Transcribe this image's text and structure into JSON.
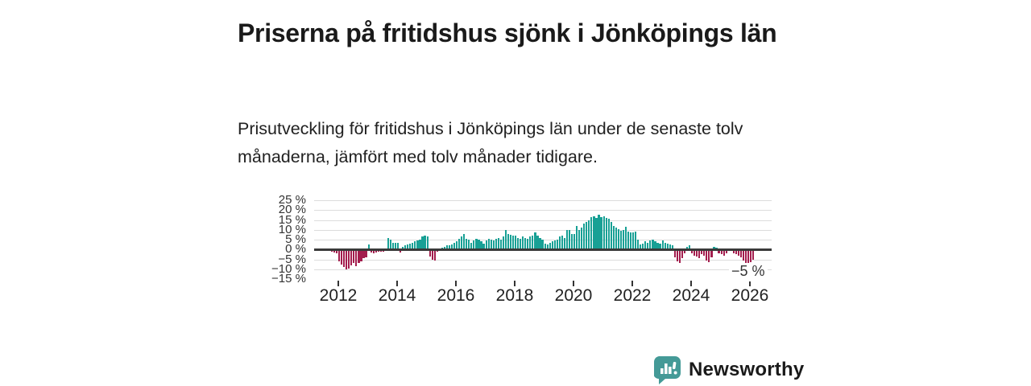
{
  "title": "Priserna på fritidshus sjönk i Jönköpings län",
  "subtitle": "Prisutveckling för fritidshus i Jönköpings län under de senaste tolv månaderna, jämfört med tolv månader tidigare.",
  "chart_data": {
    "type": "bar",
    "unit": "%",
    "frequency": "monthly",
    "start": "2011-01",
    "end": "2026-02",
    "ylim": [
      -15,
      25
    ],
    "grid": true,
    "y_tick_labels": [
      "25 %",
      "20 %",
      "15 %",
      "10 %",
      "5 %",
      "0 %",
      "−5 %",
      "−10 %",
      "−15 %"
    ],
    "x_tick_labels": [
      "2012",
      "2014",
      "2016",
      "2018",
      "2020",
      "2022",
      "2024",
      "2026"
    ],
    "annotation_last_value": "−5 %",
    "positive_color": "#18a095",
    "negative_color": "#a31d4d",
    "values": [
      0.5,
      0.3,
      0.2,
      0.1,
      0,
      -0.2,
      -0.3,
      -0.5,
      -0.6,
      -1,
      -1.5,
      -2,
      -6,
      -7.5,
      -9,
      -10,
      -9.5,
      -8,
      -7,
      -8.5,
      -7,
      -6,
      -4.5,
      -4,
      2.7,
      -1.5,
      -2,
      -1.5,
      -1,
      -1.2,
      -1,
      0.3,
      6,
      5,
      3.5,
      3.5,
      3.5,
      -1.5,
      1.5,
      2,
      2.5,
      3,
      3.5,
      4,
      4.5,
      5,
      6.5,
      7,
      6.5,
      -3.5,
      -5,
      -5.5,
      -1,
      0.5,
      1,
      1.5,
      2,
      2,
      2.5,
      3.5,
      4,
      5.5,
      6.5,
      8,
      5.5,
      5,
      3.5,
      4.5,
      5.5,
      5,
      4,
      3,
      4.5,
      5.5,
      5,
      4.5,
      5.5,
      6,
      5,
      6.5,
      10,
      8,
      7.5,
      7,
      7,
      6,
      5.5,
      6.5,
      6,
      5.5,
      6.5,
      7,
      8.5,
      7,
      6,
      5,
      3,
      2.5,
      3.5,
      4,
      4.5,
      5,
      6.5,
      7,
      6,
      10,
      10,
      8,
      8,
      12,
      10,
      11,
      13,
      14,
      15,
      16.5,
      17,
      16,
      17.5,
      16.5,
      17,
      16,
      15.5,
      14,
      12,
      11,
      10.5,
      9.5,
      10,
      11.5,
      9,
      8.5,
      8.5,
      9,
      5,
      2.5,
      3,
      4,
      3.5,
      4.5,
      5,
      4,
      3.5,
      3,
      4.5,
      3.5,
      3,
      2.5,
      2,
      -4,
      -6,
      -7,
      -4.5,
      -2,
      1.5,
      2,
      -2,
      -3,
      -3.5,
      -4.5,
      -2.5,
      -3,
      -5.5,
      -6.5,
      -4,
      1.5,
      1,
      -2,
      -2.5,
      -3,
      -2,
      0.5,
      0.5,
      -2,
      -2.5,
      -3,
      -4,
      -5.5,
      -7,
      -8,
      -6.5,
      -5
    ]
  },
  "branding": {
    "logo_text": "Newsworthy",
    "logo_color": "#449a97",
    "logo_icon": "bar-chart-speech-bubble-icon"
  }
}
